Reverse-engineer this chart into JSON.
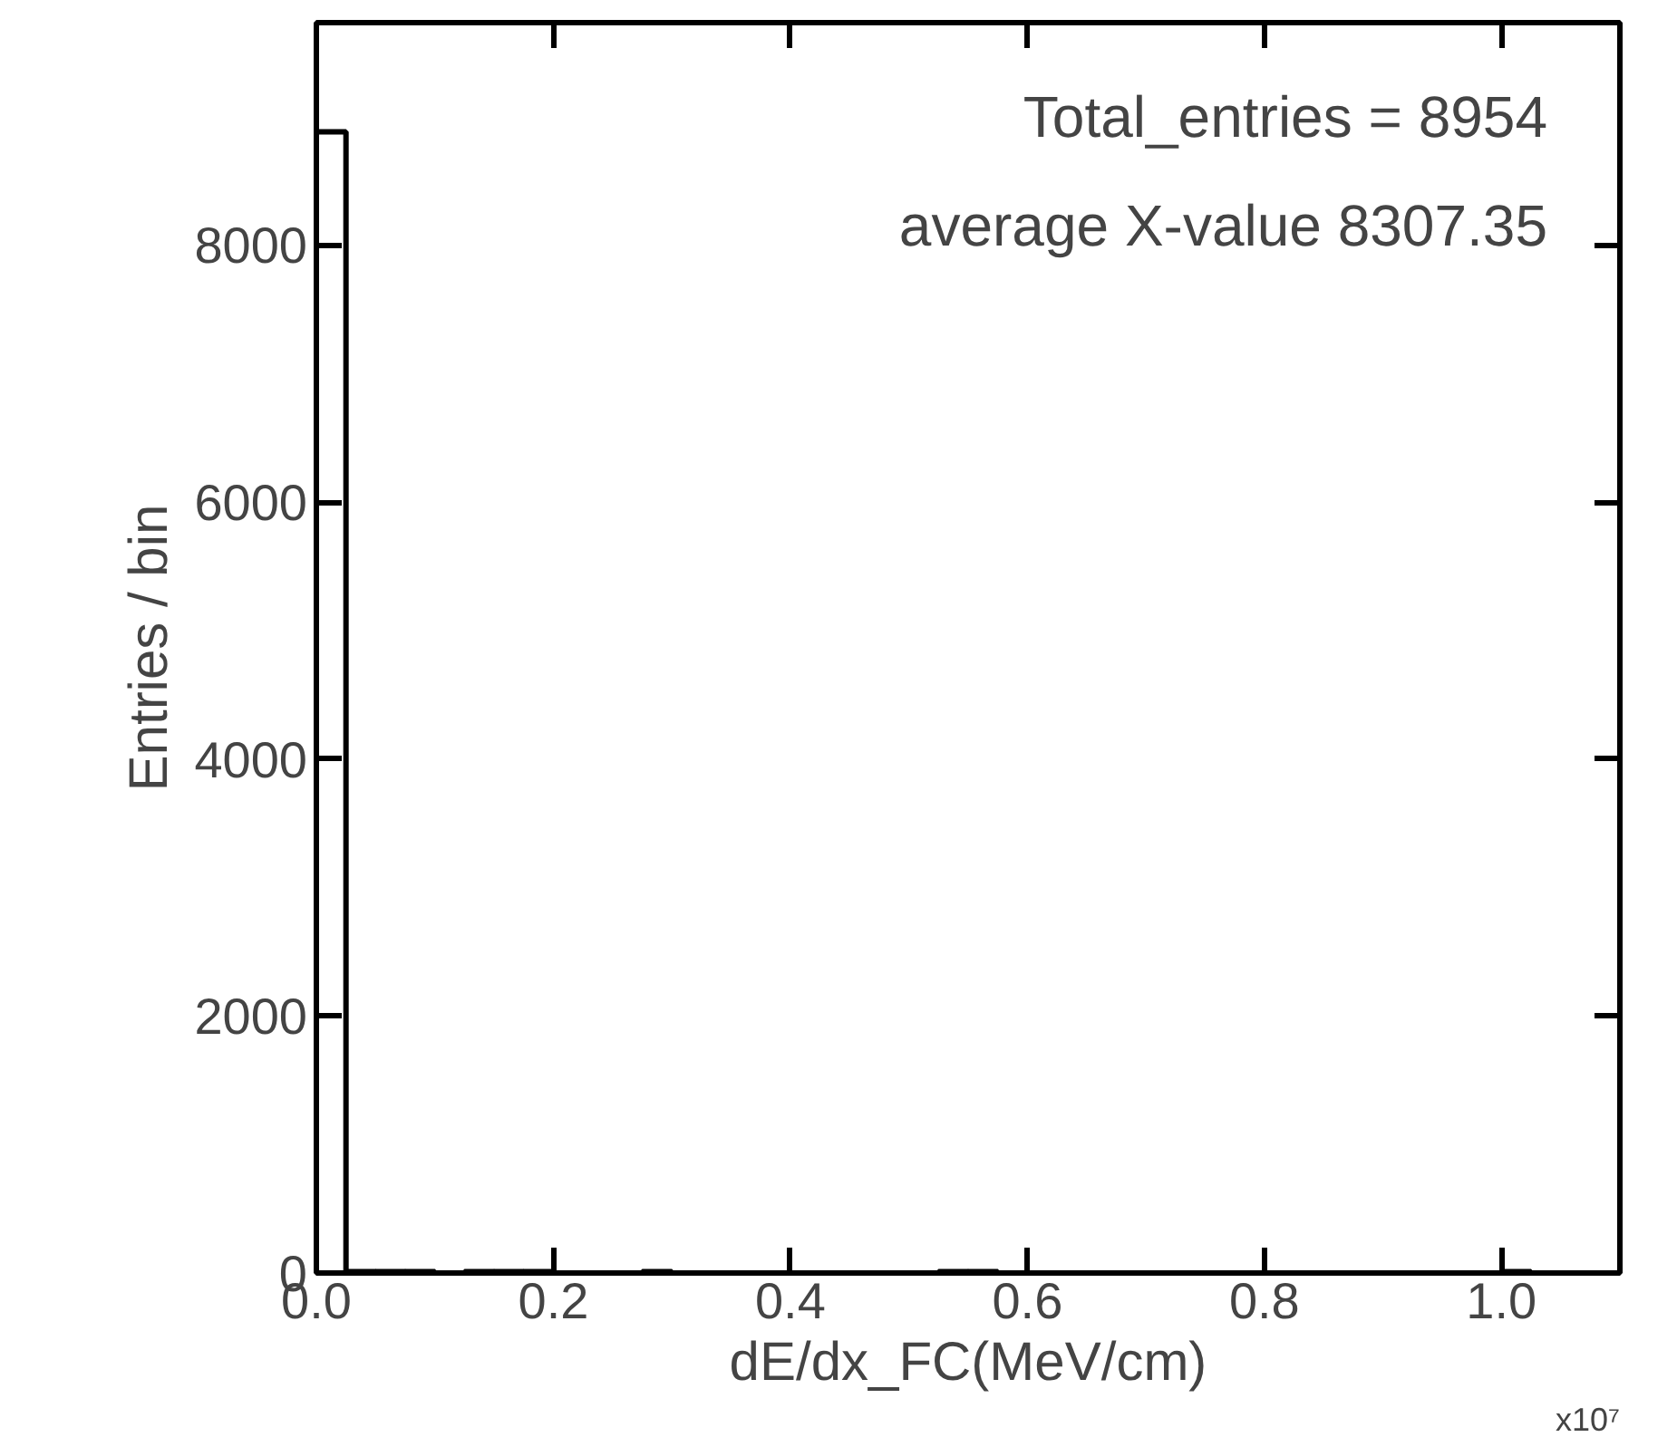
{
  "chart_data": {
    "type": "histogram",
    "xlabel": "dE/dx_FC(MeV/cm)",
    "ylabel": "Entries / bin",
    "annotations": [
      "Total_entries = 8954",
      "average X-value 8307.35",
      "x10⁷"
    ],
    "bins": [
      0,
      0.025,
      0.05,
      0.075,
      0.1,
      0.125,
      0.15,
      0.175,
      0.2,
      0.225,
      0.25,
      0.275,
      0.3,
      0.325,
      0.35,
      0.375,
      0.4,
      0.425,
      0.45,
      0.475,
      0.5,
      0.525,
      0.55,
      0.575,
      0.6,
      0.625,
      0.65,
      0.675,
      0.7,
      0.725,
      0.75,
      0.775,
      0.8,
      0.825,
      0.85,
      0.875,
      0.9,
      0.925,
      0.95,
      0.975,
      1.0,
      1.025,
      1.05,
      1.075,
      1.1
    ],
    "values": [
      8880,
      10,
      10,
      10,
      0,
      10,
      10,
      10,
      0,
      0,
      0,
      10,
      0,
      0,
      0,
      0,
      0,
      0,
      0,
      0,
      0,
      10,
      10,
      0,
      0,
      0,
      0,
      0,
      0,
      0,
      0,
      0,
      0,
      0,
      0,
      0,
      0,
      0,
      0,
      0,
      10,
      0,
      0,
      0
    ],
    "color": "#000000",
    "xlim": [
      0,
      1.1
    ],
    "ylim": [
      0,
      9730
    ],
    "xticks": [
      {
        "value": 0,
        "label": "0.0"
      },
      0.2,
      0.4,
      0.6,
      0.8,
      {
        "value": 1.0,
        "label": "1.0"
      }
    ],
    "yticks": [
      0,
      2000,
      4000,
      6000,
      8000
    ],
    "grid": false
  }
}
